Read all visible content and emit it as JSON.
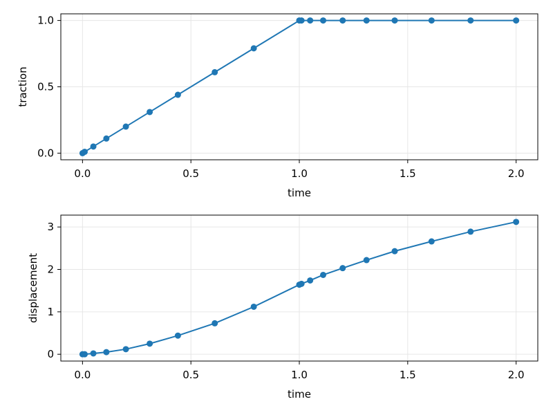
{
  "chart_data": [
    {
      "type": "line",
      "xlabel": "time",
      "ylabel": "traction",
      "xlim": [
        -0.1,
        2.1
      ],
      "ylim": [
        -0.05,
        1.05
      ],
      "xticks": [
        0.0,
        0.5,
        1.0,
        1.5,
        2.0
      ],
      "xtick_labels": [
        "0.0",
        "0.5",
        "1.0",
        "1.5",
        "2.0"
      ],
      "yticks": [
        0.0,
        0.5,
        1.0
      ],
      "ytick_labels": [
        "0.0",
        "0.5",
        "1.0"
      ],
      "grid": true,
      "color": "#1f77b4",
      "series": [
        {
          "x": [
            0.0,
            0.01,
            0.05,
            0.11,
            0.2,
            0.31,
            0.44,
            0.61,
            0.79,
            1.0,
            1.01,
            1.05,
            1.11,
            1.2,
            1.31,
            1.44,
            1.61,
            1.79,
            2.0
          ],
          "y": [
            0.0,
            0.01,
            0.05,
            0.11,
            0.2,
            0.31,
            0.44,
            0.61,
            0.79,
            1.0,
            1.0,
            1.0,
            1.0,
            1.0,
            1.0,
            1.0,
            1.0,
            1.0,
            1.0
          ]
        }
      ]
    },
    {
      "type": "line",
      "xlabel": "time",
      "ylabel": "displacement",
      "xlim": [
        -0.1,
        2.1
      ],
      "ylim": [
        -0.16,
        3.28
      ],
      "xticks": [
        0.0,
        0.5,
        1.0,
        1.5,
        2.0
      ],
      "xtick_labels": [
        "0.0",
        "0.5",
        "1.0",
        "1.5",
        "2.0"
      ],
      "yticks": [
        0,
        1,
        2,
        3
      ],
      "ytick_labels": [
        "0",
        "1",
        "2",
        "3"
      ],
      "grid": true,
      "color": "#1f77b4",
      "series": [
        {
          "x": [
            0.0,
            0.01,
            0.05,
            0.11,
            0.2,
            0.31,
            0.44,
            0.61,
            0.79,
            1.0,
            1.01,
            1.05,
            1.11,
            1.2,
            1.31,
            1.44,
            1.61,
            1.79,
            2.0
          ],
          "y": [
            0.0,
            0.0,
            0.02,
            0.05,
            0.12,
            0.25,
            0.44,
            0.73,
            1.12,
            1.64,
            1.66,
            1.74,
            1.87,
            2.03,
            2.22,
            2.43,
            2.66,
            2.89,
            3.12
          ]
        }
      ]
    }
  ]
}
